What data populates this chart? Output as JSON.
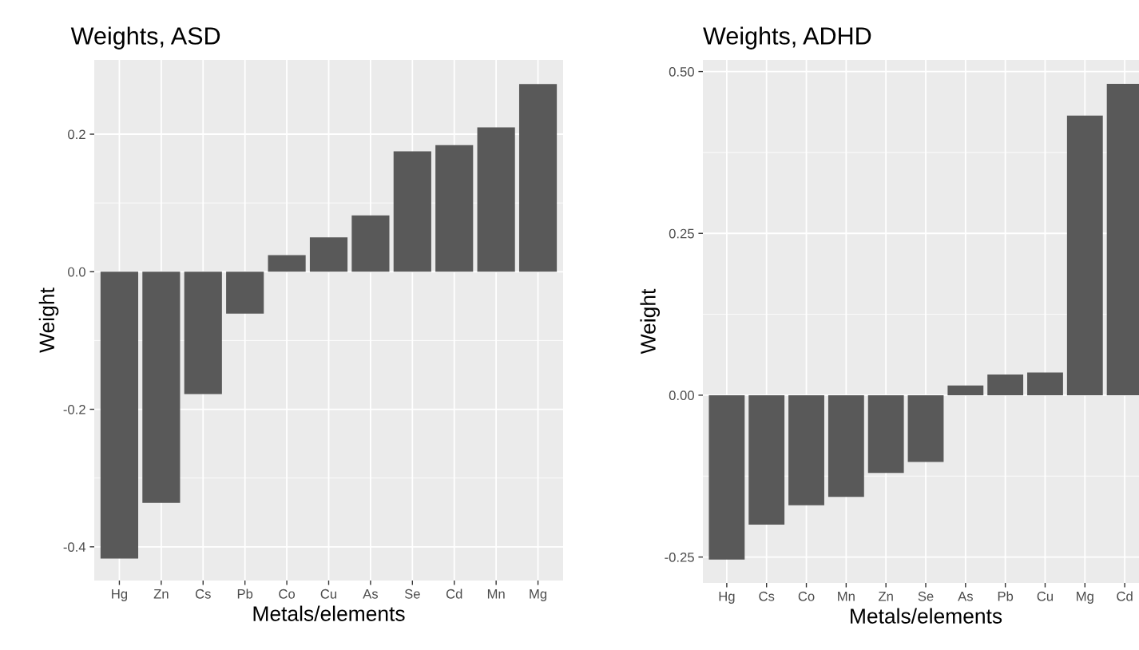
{
  "chart_data": [
    {
      "type": "bar",
      "title": "Weights, ASD",
      "xlabel": "Metals/elements",
      "ylabel": "Weight",
      "categories": [
        "Hg",
        "Zn",
        "Cs",
        "Pb",
        "Co",
        "Cu",
        "As",
        "Se",
        "Cd",
        "Mn",
        "Mg"
      ],
      "values": [
        -0.417,
        -0.336,
        -0.178,
        -0.061,
        0.024,
        0.05,
        0.082,
        0.175,
        0.184,
        0.21,
        0.273
      ],
      "color": "#595959",
      "ylim": [
        -0.449,
        0.308
      ],
      "yticks": [
        {
          "value": -0.4,
          "label": "-0.4"
        },
        {
          "value": -0.2,
          "label": "-0.2"
        },
        {
          "value": 0.0,
          "label": "0.0"
        },
        {
          "value": 0.2,
          "label": "0.2"
        }
      ],
      "grid": true
    },
    {
      "type": "bar",
      "title": "Weights, ADHD",
      "xlabel": "Metals/elements",
      "ylabel": "Weight",
      "categories": [
        "Hg",
        "Cs",
        "Co",
        "Mn",
        "Zn",
        "Se",
        "As",
        "Pb",
        "Cu",
        "Mg",
        "Cd"
      ],
      "values": [
        -0.254,
        -0.2,
        -0.17,
        -0.157,
        -0.12,
        -0.103,
        0.015,
        0.032,
        0.035,
        0.432,
        0.481
      ],
      "color": "#595959",
      "ylim": [
        -0.29,
        0.518
      ],
      "yticks": [
        {
          "value": -0.25,
          "label": "-0.25"
        },
        {
          "value": 0.0,
          "label": "0.00"
        },
        {
          "value": 0.25,
          "label": "0.25"
        },
        {
          "value": 0.5,
          "label": "0.50"
        }
      ],
      "grid": true
    }
  ]
}
